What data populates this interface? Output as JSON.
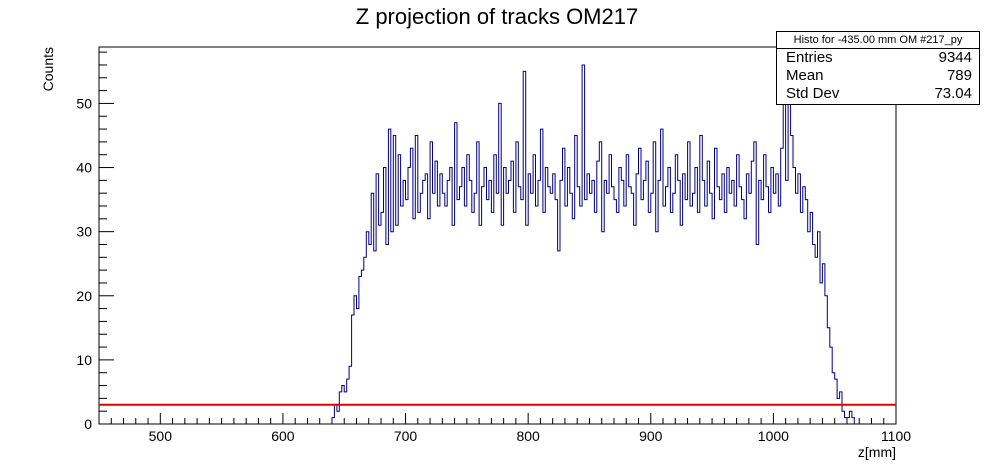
{
  "chart_data": {
    "type": "histogram",
    "title": "Z projection of tracks OM217",
    "xlabel": "z[mm]",
    "ylabel": "Counts",
    "xlim": [
      450,
      1100
    ],
    "ylim": [
      0,
      58.8
    ],
    "xticks": [
      500,
      600,
      700,
      800,
      900,
      1000,
      1100
    ],
    "yticks": [
      0,
      10,
      20,
      30,
      40,
      50
    ],
    "line_color": "#000080",
    "threshold": {
      "y": 3,
      "color": "#e00000"
    },
    "bin_width": 2,
    "bins_start": 640,
    "counts": [
      1,
      3,
      2,
      5,
      6,
      5,
      7,
      9,
      17,
      20,
      18,
      23,
      24,
      26,
      30,
      28,
      36,
      27,
      39,
      31,
      33,
      40,
      28,
      46,
      30,
      45,
      31,
      42,
      34,
      38,
      35,
      40,
      43,
      32,
      45,
      33,
      36,
      38,
      39,
      32,
      44,
      36,
      41,
      34,
      39,
      36,
      34,
      38,
      40,
      31,
      47,
      35,
      37,
      40,
      34,
      42,
      38,
      33,
      36,
      44,
      31,
      37,
      40,
      35,
      38,
      33,
      42,
      36,
      50,
      31,
      40,
      36,
      38,
      41,
      33,
      44,
      37,
      35,
      55,
      31,
      39,
      36,
      42,
      34,
      38,
      46,
      33,
      40,
      37,
      36,
      39,
      35,
      27,
      38,
      43,
      34,
      40,
      36,
      32,
      45,
      37,
      34,
      56,
      35,
      39,
      36,
      38,
      33,
      41,
      44,
      30,
      38,
      36,
      42,
      37,
      35,
      33,
      40,
      38,
      34,
      42,
      37,
      36,
      31,
      39,
      43,
      35,
      38,
      41,
      33,
      36,
      44,
      30,
      38,
      46,
      34,
      37,
      40,
      33,
      36,
      42,
      38,
      31,
      39,
      35,
      44,
      34,
      36,
      40,
      33,
      45,
      38,
      34,
      41,
      36,
      32,
      43,
      37,
      35,
      39,
      33,
      40,
      36,
      38,
      34,
      42,
      37,
      35,
      32,
      39,
      36,
      41,
      44,
      28,
      38,
      35,
      42,
      37,
      33,
      40,
      36,
      39,
      34,
      43,
      52,
      38,
      56,
      45,
      40,
      36,
      39,
      33,
      37,
      35,
      30,
      33,
      28,
      26,
      30,
      22,
      25,
      20,
      15,
      12,
      8,
      7,
      4,
      5,
      2,
      1,
      1,
      2,
      1
    ]
  },
  "stats": {
    "title": "Histo for -435.00 mm OM #217_py",
    "rows": [
      {
        "label": "Entries",
        "value": "9344"
      },
      {
        "label": "Mean",
        "value": "789"
      },
      {
        "label": "Std Dev",
        "value": "73.04"
      }
    ]
  }
}
